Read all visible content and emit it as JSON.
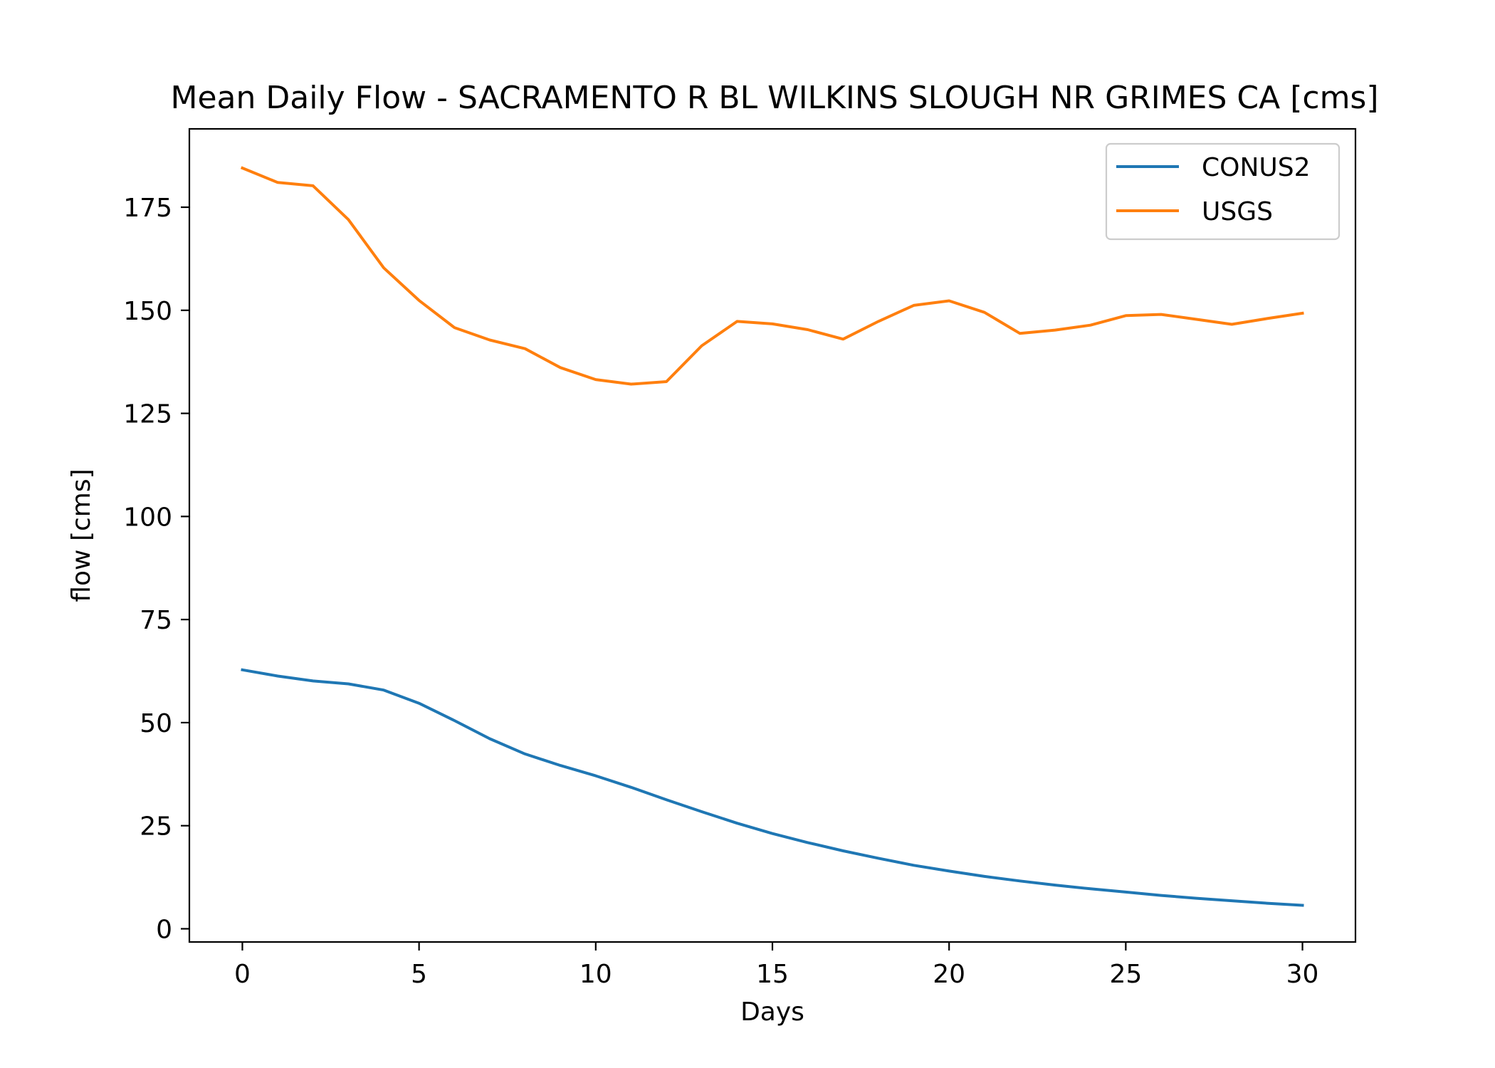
{
  "chart_data": {
    "type": "line",
    "title": "Mean Daily Flow - SACRAMENTO R BL WILKINS SLOUGH NR GRIMES CA [cms]",
    "xlabel": "Days",
    "ylabel": "flow [cms]",
    "xlim": [
      -1.5,
      31.5
    ],
    "ylim": [
      -3.2,
      194
    ],
    "xticks": [
      0,
      5,
      10,
      15,
      20,
      25,
      30
    ],
    "yticks": [
      0,
      25,
      50,
      75,
      100,
      125,
      150,
      175
    ],
    "grid": false,
    "legend_position": "top-right",
    "x": [
      0,
      1,
      2,
      3,
      4,
      5,
      6,
      7,
      8,
      9,
      10,
      11,
      12,
      13,
      14,
      15,
      16,
      17,
      18,
      19,
      20,
      21,
      22,
      23,
      24,
      25,
      26,
      27,
      28,
      29,
      30
    ],
    "series": [
      {
        "name": "CONUS2",
        "color": "#1f77b4",
        "values": [
          62.8,
          61.3,
          60.1,
          59.4,
          57.9,
          54.7,
          50.5,
          46.1,
          42.4,
          39.6,
          37.1,
          34.3,
          31.3,
          28.4,
          25.6,
          23.1,
          20.9,
          18.9,
          17.1,
          15.4,
          14.0,
          12.7,
          11.6,
          10.6,
          9.7,
          8.9,
          8.1,
          7.4,
          6.8,
          6.2,
          5.7
        ]
      },
      {
        "name": "USGS",
        "color": "#ff7f0e",
        "values": [
          184.5,
          181.0,
          180.2,
          172.0,
          160.3,
          152.4,
          145.8,
          142.8,
          140.7,
          136.1,
          133.2,
          132.1,
          132.7,
          141.4,
          147.3,
          146.7,
          145.3,
          143.0,
          147.3,
          151.2,
          152.3,
          149.5,
          144.4,
          145.2,
          146.4,
          148.7,
          149.0,
          147.8,
          146.6,
          148.0,
          149.3
        ]
      }
    ]
  }
}
